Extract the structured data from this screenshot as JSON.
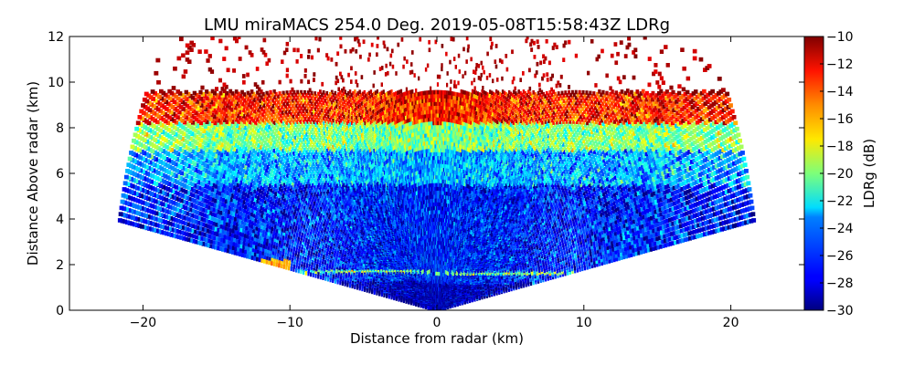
{
  "chart_data": {
    "type": "heatmap",
    "title": "LMU miraMACS 254.0 Deg. 2019-05-08T15:58:43Z  LDRg",
    "xlabel": "Distance from radar (km)",
    "ylabel": "Distance Above radar  (km)",
    "xlim": [
      -25,
      25
    ],
    "ylim": [
      0,
      12
    ],
    "xticks": [
      -20,
      -10,
      0,
      10,
      20
    ],
    "xtick_labels": [
      "−20",
      "−10",
      "0",
      "10",
      "20"
    ],
    "yticks": [
      0,
      2,
      4,
      6,
      8,
      10,
      12
    ],
    "ytick_labels": [
      "0",
      "2",
      "4",
      "6",
      "8",
      "10",
      "12"
    ],
    "grid": false,
    "scan": {
      "type": "RHI",
      "azimuth_deg": 254.0,
      "max_range_km": 22,
      "min_elevation_deg": 10
    },
    "colorbar": {
      "label": "LDRg (dB)",
      "colormap": "jet",
      "range": [
        -30,
        -10
      ],
      "ticks": [
        -30,
        -28,
        -26,
        -24,
        -22,
        -20,
        -18,
        -16,
        -14,
        -12,
        -10
      ],
      "tick_labels": [
        "−30",
        "−28",
        "−26",
        "−24",
        "−22",
        "−20",
        "−18",
        "−16",
        "−14",
        "−12",
        "−10"
      ]
    },
    "layers": [
      {
        "height_km": [
          0.0,
          1.2
        ],
        "ldr_db": -29
      },
      {
        "height_km": [
          1.6,
          1.7
        ],
        "ldr_db": -20
      },
      {
        "height_km": [
          2.0,
          5.5
        ],
        "ldr_db": -27
      },
      {
        "height_km": [
          5.5,
          7.0
        ],
        "ldr_db": -24
      },
      {
        "height_km": [
          7.0,
          8.2
        ],
        "ldr_db": -20
      },
      {
        "height_km": [
          8.2,
          9.5
        ],
        "ldr_db": -13
      },
      {
        "height_km": [
          9.5,
          12.0
        ],
        "ldr_db": -10
      }
    ]
  }
}
